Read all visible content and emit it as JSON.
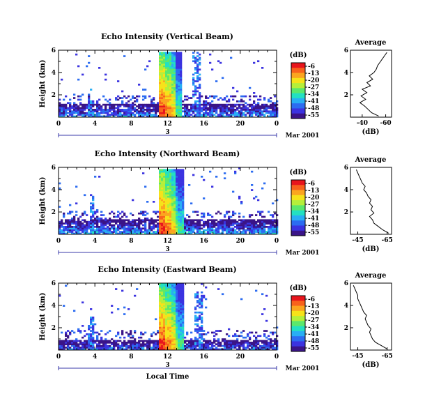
{
  "chart_data": [
    {
      "type": "heatmap",
      "title": "Echo Intensity (Vertical Beam)",
      "ylabel": "Height (km)",
      "yticks": [
        "2",
        "4",
        "6"
      ],
      "ylim": [
        0,
        6
      ],
      "xticks": [
        "0",
        "4",
        "8",
        "12",
        "16",
        "20",
        "0"
      ],
      "xlim": [
        0,
        24
      ],
      "date_day": "3",
      "date_label": "Mar 2001",
      "colorbar_unit": "(dB)",
      "colorbar_ticks": [
        "-6",
        "-13",
        "-20",
        "-27",
        "-34",
        "-41",
        "-48",
        "-55"
      ],
      "colorbar_colors": [
        "#e8151c",
        "#f8621c",
        "#fba51f",
        "#f6e21a",
        "#b5ef3a",
        "#5be86c",
        "#23e0c2",
        "#28aef4",
        "#2c6cf1",
        "#3b33e0",
        "#3a1488"
      ],
      "features": [
        {
          "x": [
            11.0,
            13.5
          ],
          "top": 6.0,
          "intensity": "strong"
        },
        {
          "x": [
            0,
            24
          ],
          "top": 1.3,
          "intensity": "low-level layer"
        },
        {
          "x": [
            3.2,
            3.6
          ],
          "top": 2.6,
          "intensity": "weak"
        },
        {
          "x": [
            14.7,
            15.6
          ],
          "top": 5.9,
          "intensity": "weak"
        }
      ],
      "profile": {
        "title": "Average",
        "xlabel": "(dB)",
        "xticks": [
          "-40",
          "-60"
        ],
        "xlim": [
          -30,
          -65
        ],
        "yticks": [
          "2",
          "4",
          "6"
        ],
        "ylim": [
          0,
          6
        ],
        "heights": [
          0.1,
          0.4,
          0.7,
          1.0,
          1.3,
          1.6,
          1.9,
          2.2,
          2.5,
          2.8,
          3.1,
          3.4,
          3.7,
          4.0,
          4.3,
          4.6,
          4.9,
          5.2,
          5.5,
          5.8
        ],
        "values": [
          -54,
          -48,
          -45,
          -42,
          -38,
          -43,
          -39,
          -44,
          -40,
          -47,
          -44,
          -49,
          -46,
          -50,
          -52,
          -53,
          -55,
          -57,
          -59,
          -61
        ]
      }
    },
    {
      "type": "heatmap",
      "title": "Echo Intensity (Northward Beam)",
      "ylabel": "Height (km)",
      "yticks": [
        "2",
        "4",
        "6"
      ],
      "ylim": [
        0,
        6
      ],
      "xticks": [
        "0",
        "4",
        "8",
        "12",
        "16",
        "20",
        "0"
      ],
      "xlim": [
        0,
        24
      ],
      "date_day": "3",
      "date_label": "Mar 2001",
      "colorbar_unit": "(dB)",
      "colorbar_ticks": [
        "-6",
        "-13",
        "-20",
        "-27",
        "-34",
        "-41",
        "-48",
        "-55"
      ],
      "colorbar_colors": [
        "#e8151c",
        "#f8621c",
        "#fba51f",
        "#f6e21a",
        "#b5ef3a",
        "#5be86c",
        "#23e0c2",
        "#28aef4",
        "#2c6cf1",
        "#3b33e0",
        "#3a1488"
      ],
      "features": [
        {
          "x": [
            11.0,
            13.6
          ],
          "top": 5.9,
          "intensity": "strong"
        },
        {
          "x": [
            0,
            24
          ],
          "top": 1.4,
          "intensity": "low-level layer"
        },
        {
          "x": [
            3.3,
            3.8
          ],
          "top": 3.7,
          "intensity": "weak"
        }
      ],
      "profile": {
        "title": "Average",
        "xlabel": "(dB)",
        "xticks": [
          "-45",
          "-65"
        ],
        "xlim": [
          -40,
          -68
        ],
        "yticks": [
          "2",
          "4",
          "6"
        ],
        "ylim": [
          0,
          6
        ],
        "heights": [
          0.1,
          0.4,
          0.7,
          1.0,
          1.3,
          1.6,
          1.9,
          2.2,
          2.5,
          2.8,
          3.1,
          3.4,
          3.7,
          4.0,
          4.3,
          4.6,
          4.9,
          5.2,
          5.5,
          5.8
        ],
        "values": [
          -66,
          -62,
          -59,
          -56,
          -55,
          -53,
          -56,
          -54,
          -55,
          -53,
          -54,
          -52,
          -51,
          -49,
          -50,
          -48,
          -47,
          -46,
          -45,
          -44
        ]
      }
    },
    {
      "type": "heatmap",
      "title": "Echo Intensity (Eastward Beam)",
      "ylabel": "Height (km)",
      "yticks": [
        "2",
        "4",
        "6"
      ],
      "ylim": [
        0,
        6
      ],
      "xticks": [
        "0",
        "4",
        "8",
        "12",
        "16",
        "20",
        "0"
      ],
      "xlim": [
        0,
        24
      ],
      "date_day": "3",
      "date_label": "Mar 2001",
      "xlabel": "Local Time",
      "colorbar_unit": "(dB)",
      "colorbar_ticks": [
        "-6",
        "-13",
        "-20",
        "-27",
        "-34",
        "-41",
        "-48",
        "-55"
      ],
      "colorbar_colors": [
        "#e8151c",
        "#f8621c",
        "#fba51f",
        "#f6e21a",
        "#b5ef3a",
        "#5be86c",
        "#23e0c2",
        "#28aef4",
        "#2c6cf1",
        "#3b33e0",
        "#3a1488"
      ],
      "features": [
        {
          "x": [
            10.9,
            13.6
          ],
          "top": 6.0,
          "intensity": "strong"
        },
        {
          "x": [
            0,
            24
          ],
          "top": 1.0,
          "intensity": "low-level layer"
        },
        {
          "x": [
            3.2,
            3.7
          ],
          "top": 3.0,
          "intensity": "weak"
        },
        {
          "x": [
            14.8,
            15.8
          ],
          "top": 5.5,
          "intensity": "weak"
        }
      ],
      "profile": {
        "title": "Average",
        "xlabel": "(dB)",
        "xticks": [
          "-45",
          "-65"
        ],
        "xlim": [
          -40,
          -68
        ],
        "yticks": [
          "2",
          "4",
          "6"
        ],
        "ylim": [
          0,
          6
        ],
        "heights": [
          0.1,
          0.4,
          0.7,
          1.0,
          1.3,
          1.6,
          1.9,
          2.2,
          2.5,
          2.8,
          3.1,
          3.4,
          3.7,
          4.0,
          4.3,
          4.6,
          4.9,
          5.2,
          5.5,
          5.8
        ],
        "values": [
          -65,
          -61,
          -57,
          -55,
          -54,
          -53,
          -54,
          -52,
          -51,
          -50,
          -51,
          -49,
          -48,
          -47,
          -46,
          -45,
          -45,
          -44,
          -43,
          -42
        ]
      }
    }
  ]
}
